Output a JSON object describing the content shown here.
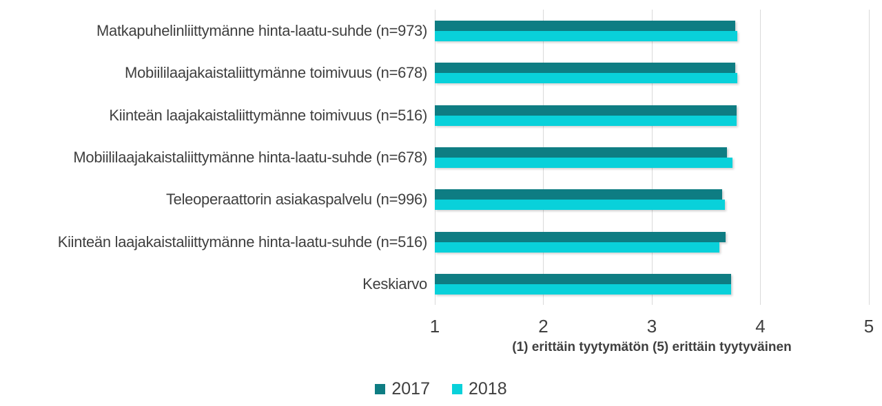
{
  "chart_data": {
    "type": "bar",
    "orientation": "horizontal",
    "title": "",
    "categories": [
      "Matkapuhelinliittymänne hinta-laatu-suhde (n=973)",
      "Mobiililaajakaistaliittymänne toimivuus (n=678)",
      "Kiinteän laajakaistaliittymänne toimivuus (n=516)",
      "Mobiililaajakaistaliittymänne hinta-laatu-suhde (n=678)",
      "Teleoperaattorin asiakaspalvelu (n=996)",
      "Kiinteän laajakaistaliittymänne hinta-laatu-suhde (n=516)",
      "Keskiarvo"
    ],
    "series": [
      {
        "name": "2017",
        "color": "#0e7d83",
        "values": [
          3.77,
          3.77,
          3.78,
          3.69,
          3.65,
          3.68,
          3.73
        ]
      },
      {
        "name": "2018",
        "color": "#09d1da",
        "values": [
          3.79,
          3.79,
          3.78,
          3.74,
          3.67,
          3.62,
          3.73
        ]
      }
    ],
    "x_ticks": [
      "1",
      "2",
      "3",
      "4",
      "5"
    ],
    "xlim": [
      1,
      5
    ],
    "xlabel": "(1) erittäin tyytymätön (5) erittäin tyytyväinen",
    "ylabel": "",
    "grid": "vertical",
    "legend_position": "bottom"
  },
  "colors": {
    "background": "#ffffff",
    "gridline": "#d9d9d9",
    "text": "#3f3f3f",
    "series_2017": "#0e7d83",
    "series_2018": "#09d1da"
  }
}
